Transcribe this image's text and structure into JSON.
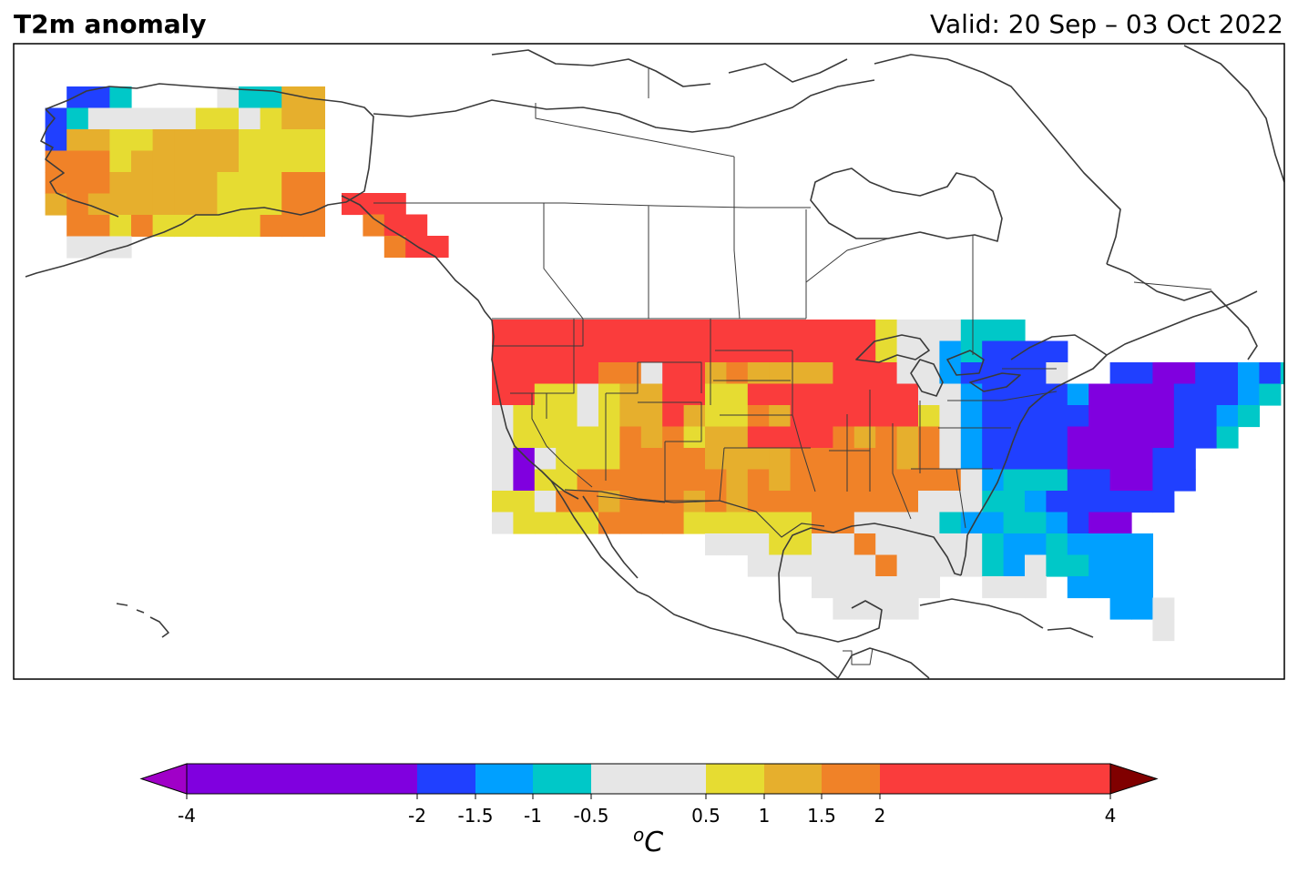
{
  "header": {
    "title": "T2m anomaly",
    "valid": "Valid: 20 Sep – 03 Oct 2022"
  },
  "legend": {
    "unit_base": "C",
    "unit_sup": "o",
    "bins": [
      {
        "from": -4,
        "to": -2,
        "color": "#8000df"
      },
      {
        "from": -2,
        "to": -1.5,
        "color": "#2040ff"
      },
      {
        "from": -1.5,
        "to": -1,
        "color": "#00a0ff"
      },
      {
        "from": -1,
        "to": -0.5,
        "color": "#00c8c8"
      },
      {
        "from": -0.5,
        "to": 0.5,
        "color": "#e6e6e6"
      },
      {
        "from": 0.5,
        "to": 1,
        "color": "#e6dc32"
      },
      {
        "from": 1,
        "to": 1.5,
        "color": "#e6af2d"
      },
      {
        "from": 1.5,
        "to": 2,
        "color": "#f08228"
      },
      {
        "from": 2,
        "to": 4,
        "color": "#fa3c3c"
      }
    ],
    "under_color": "#a000c8",
    "over_color": "#800000",
    "ticks": [
      "-4",
      "-2",
      "-1.5",
      "-1",
      "-0.5",
      "0.5",
      "1",
      "1.5",
      "2",
      "4"
    ]
  },
  "map_data": {
    "grid_code_legend": {
      "P": "< -2",
      "B": "-2 to -1.5",
      "S": "-1.5 to -1",
      "C": "-1 to -0.5",
      "W": "-0.5 to 0.5",
      "Y": "0.5 to 1",
      "G": "1 to 1.5",
      "O": "1.5 to 2",
      "R": "2 to 4"
    },
    "alaska_grid": [
      "..BBC....WCCGG",
      ".BCWWWWWYYWYGG",
      ".BGGYYGGGGYYYY",
      ".OOOYGGGGGYYYY",
      ".OOOGGGGGYYYOO",
      ".GOGGGGGGYYYOO",
      "..OOYOYYYYYOOO",
      "..WWW........."
    ],
    "bc_coast": [
      [
        "R",
        "R",
        "R",
        ".",
        "."
      ],
      [
        ".",
        "O",
        "R",
        "R",
        "."
      ],
      [
        ".",
        ".",
        "O",
        "R",
        "R"
      ]
    ],
    "conus_grid": [
      "RRRRRRRRRRRRRRRRRRYWWWCCC...................",
      "RRRRRRRRRRRRRRRRRRYWWSCBBBB.................",
      "RRRRROOWRRGOGGGGRRRWWSBBBBW..BBPPBBSBC......",
      "RRYYWYGGRRYYRRRRRRRRWWSBBBBSPPPPBBBSC.......",
      "WYYYWYGGRGYYOGRRRRRRYWSBBBBBPPPPBBSC........",
      "WYYYYYOGOYGGRRRROGOGOWSBBBBPPPPPBBC.........",
      "WPWYYYOOOOGGGGOOOOOGOWSBBBBPPPPBB...........",
      "WPYYOOOOOOOGOGOOOOOOOOWSCCCBBPPBB...........",
      "YYWOOGOOOGOGOOOOOOOOWWWCCSBBBBBB............",
      "WYYYYOOOOYYYYYYOOWWWWCSSCCSBPP..............",
      "..........WWWYYWWOWWWWWCSSCSSSS.............",
      "............WWWWWWOWWWWCSWCCSSS.............",
      "...............WWWWWW..WWW.SSSS.............",
      "................WWWW.........SSW............",
      "...............................W............"
    ]
  }
}
